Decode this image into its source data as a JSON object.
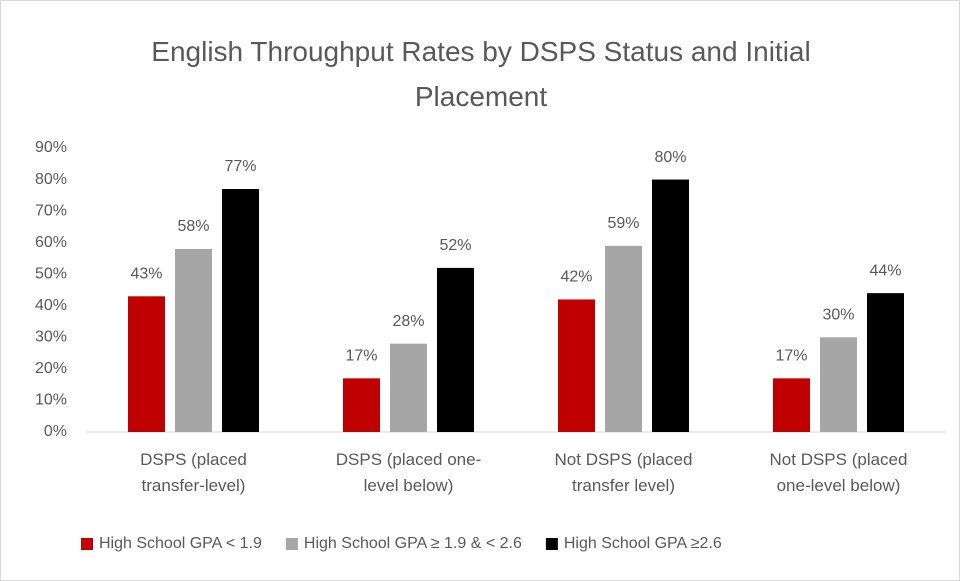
{
  "chart_data": {
    "type": "bar",
    "title": "English Throughput Rates by DSPS Status and Initial Placement",
    "categories": [
      "DSPS (placed transfer-level)",
      "DSPS (placed one-level below)",
      "Not DSPS (placed transfer level)",
      "Not DSPS (placed one-level below)"
    ],
    "series": [
      {
        "name": "High School GPA < 1.9",
        "color": "#c00000",
        "values": [
          43,
          17,
          42,
          17
        ],
        "value_labels": [
          "43%",
          "17%",
          "42%",
          "17%"
        ]
      },
      {
        "name": "High School GPA ≥ 1.9 & < 2.6",
        "color": "#a6a6a6",
        "values": [
          58,
          28,
          59,
          30
        ],
        "value_labels": [
          "58%",
          "28%",
          "59%",
          "30%"
        ]
      },
      {
        "name": "High School GPA ≥2.6",
        "color": "#000000",
        "values": [
          77,
          52,
          80,
          44
        ],
        "value_labels": [
          "77%",
          "52%",
          "80%",
          "44%"
        ]
      }
    ],
    "ylim": [
      0,
      90
    ],
    "yticks": [
      {
        "value": 0,
        "label": "0%"
      },
      {
        "value": 10,
        "label": "10%"
      },
      {
        "value": 20,
        "label": "20%"
      },
      {
        "value": 30,
        "label": "30%"
      },
      {
        "value": 40,
        "label": "40%"
      },
      {
        "value": 50,
        "label": "50%"
      },
      {
        "value": 60,
        "label": "60%"
      },
      {
        "value": 70,
        "label": "70%"
      },
      {
        "value": 80,
        "label": "80%"
      },
      {
        "value": 90,
        "label": "90%"
      }
    ],
    "grid": false,
    "legend": "bottom"
  }
}
